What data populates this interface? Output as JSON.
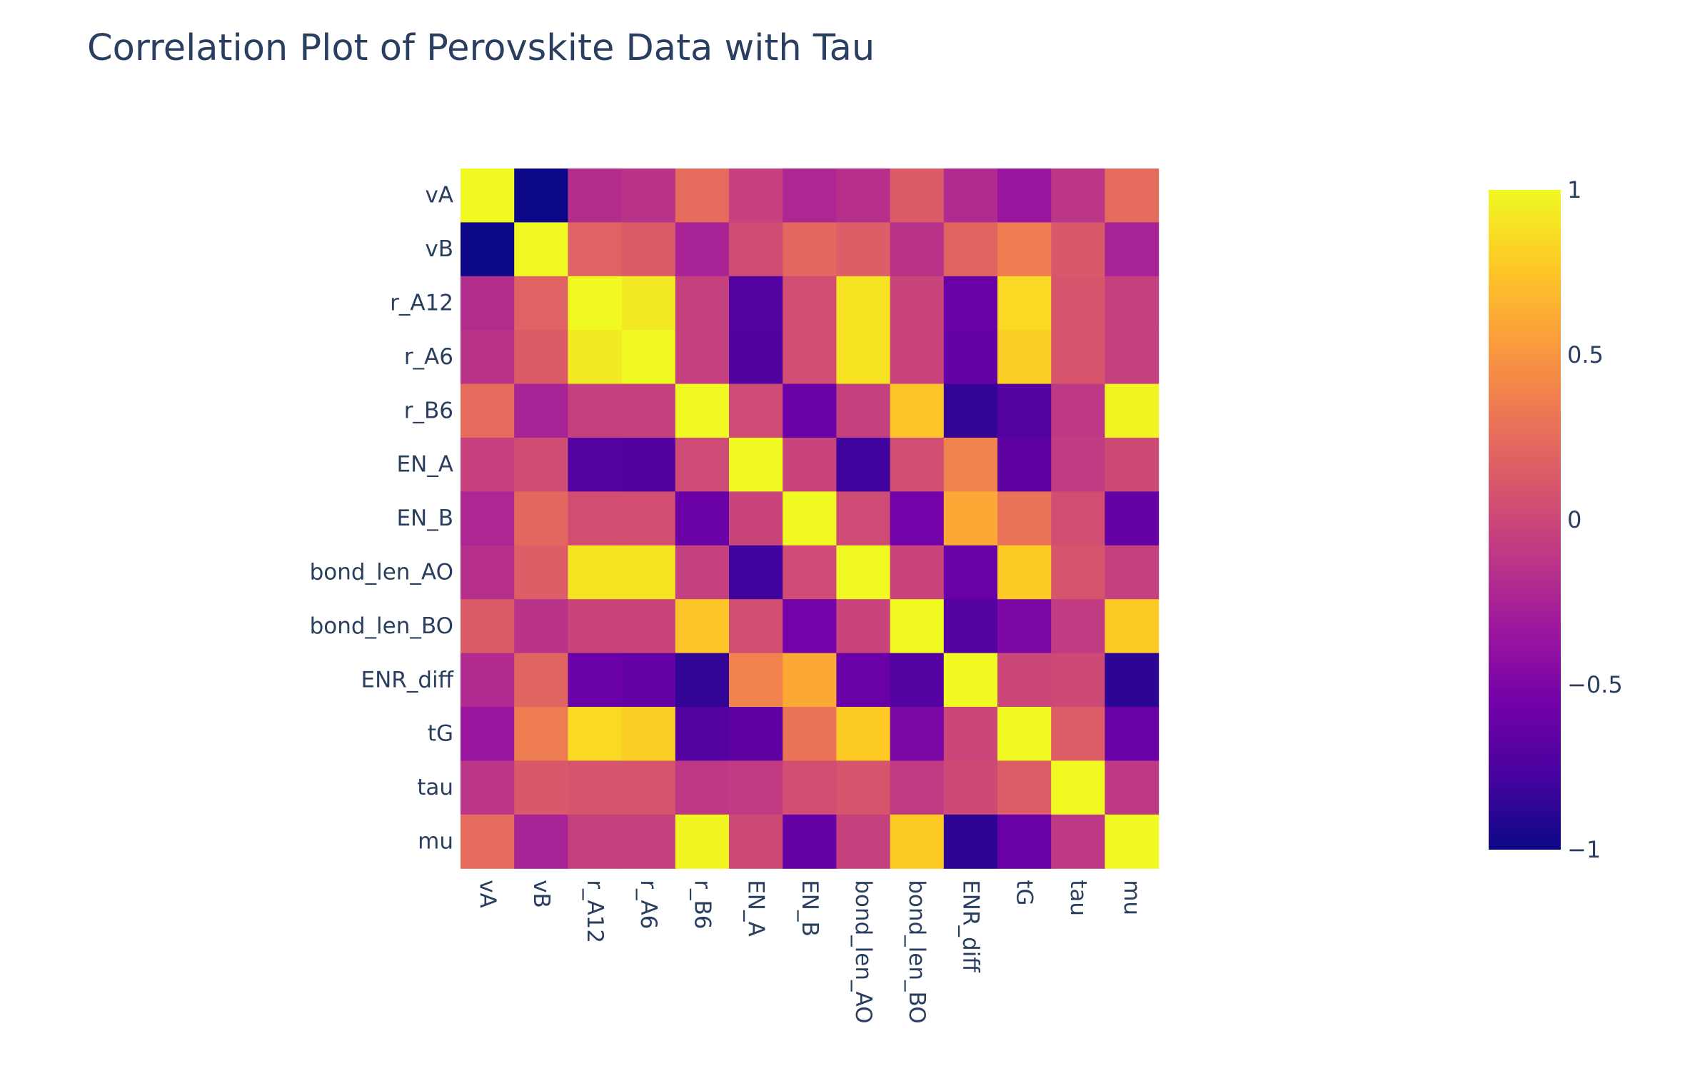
{
  "chart_data": {
    "type": "heatmap",
    "title": "Correlation Plot of Perovskite Data with Tau",
    "x": [
      "vA",
      "vB",
      "r_A12",
      "r_A6",
      "r_B6",
      "EN_A",
      "EN_B",
      "bond_len_AO",
      "bond_len_BO",
      "ENR_diff",
      "tG",
      "tau",
      "mu"
    ],
    "y": [
      "vA",
      "vB",
      "r_A12",
      "r_A6",
      "r_B6",
      "EN_A",
      "EN_B",
      "bond_len_AO",
      "bond_len_BO",
      "ENR_diff",
      "tG",
      "tau",
      "mu"
    ],
    "z": [
      [
        1.0,
        -1.0,
        -0.18,
        -0.14,
        0.25,
        -0.04,
        -0.22,
        -0.16,
        0.14,
        -0.2,
        -0.35,
        -0.12,
        0.25
      ],
      [
        -1.0,
        1.0,
        0.18,
        0.14,
        -0.25,
        0.04,
        0.22,
        0.16,
        -0.14,
        0.2,
        0.35,
        0.12,
        -0.25
      ],
      [
        -0.18,
        0.18,
        1.0,
        0.93,
        -0.05,
        -0.7,
        0.05,
        0.9,
        -0.02,
        -0.6,
        0.85,
        0.1,
        -0.05
      ],
      [
        -0.14,
        0.14,
        0.93,
        1.0,
        -0.05,
        -0.72,
        0.05,
        0.9,
        -0.02,
        -0.62,
        0.8,
        0.1,
        -0.05
      ],
      [
        0.25,
        -0.25,
        -0.05,
        -0.05,
        1.0,
        0.03,
        -0.6,
        -0.05,
        0.75,
        -0.85,
        -0.7,
        -0.1,
        0.98
      ],
      [
        -0.04,
        0.04,
        -0.7,
        -0.72,
        0.03,
        1.0,
        -0.02,
        -0.8,
        0.05,
        0.4,
        -0.65,
        -0.08,
        0.02
      ],
      [
        -0.22,
        0.22,
        0.05,
        0.05,
        -0.6,
        -0.02,
        1.0,
        0.03,
        -0.55,
        0.6,
        0.3,
        0.05,
        -0.62
      ],
      [
        -0.16,
        0.16,
        0.9,
        0.9,
        -0.05,
        -0.8,
        0.03,
        1.0,
        -0.02,
        -0.6,
        0.78,
        0.1,
        -0.05
      ],
      [
        0.14,
        -0.14,
        -0.02,
        -0.02,
        0.75,
        0.05,
        -0.55,
        -0.02,
        1.0,
        -0.7,
        -0.5,
        -0.08,
        0.78
      ],
      [
        -0.2,
        0.2,
        -0.6,
        -0.62,
        -0.85,
        0.4,
        0.6,
        -0.6,
        -0.7,
        1.0,
        0.0,
        0.02,
        -0.88
      ],
      [
        -0.35,
        0.35,
        0.85,
        0.8,
        -0.7,
        -0.65,
        0.3,
        0.78,
        -0.5,
        0.0,
        1.0,
        0.15,
        -0.6
      ],
      [
        -0.12,
        0.12,
        0.1,
        0.1,
        -0.1,
        -0.08,
        0.05,
        0.1,
        -0.08,
        0.02,
        0.15,
        1.0,
        -0.1
      ],
      [
        0.25,
        -0.25,
        -0.05,
        -0.05,
        0.98,
        0.02,
        -0.62,
        -0.05,
        0.78,
        -0.88,
        -0.6,
        -0.1,
        1.0
      ]
    ],
    "zmin": -1,
    "zmax": 1,
    "colorscale": "plasma",
    "colorbar_ticks": [
      "1",
      "0.5",
      "0",
      "−0.5",
      "−1"
    ],
    "colorbar_tick_values": [
      1,
      0.5,
      0,
      -0.5,
      -1
    ]
  }
}
